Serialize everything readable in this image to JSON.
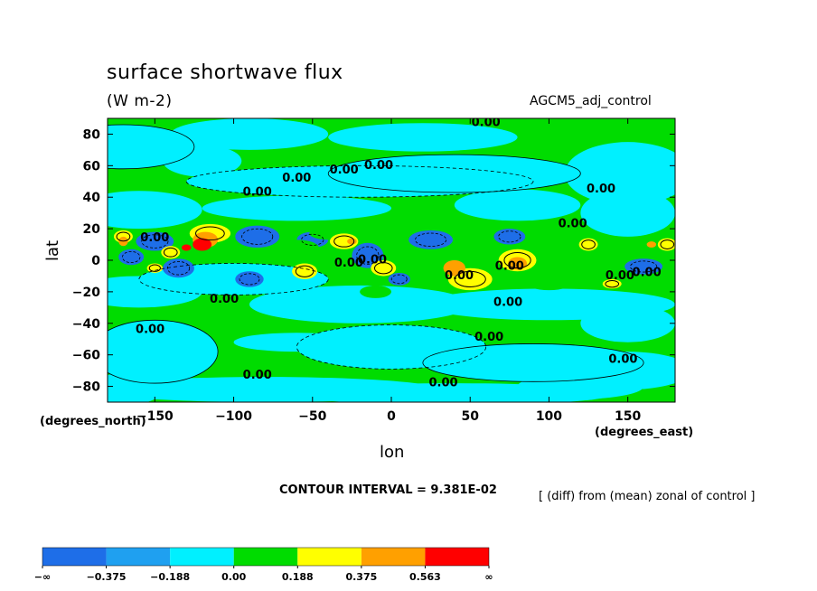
{
  "chart_data": {
    "type": "heatmap",
    "title": "surface shortwave flux",
    "subtitle": "(W m-2)",
    "dataset": "AGCM5_adj_control",
    "xlabel": "lon",
    "ylabel": "lat",
    "x_unit_label": "(degrees_east)",
    "y_unit_label": "(degrees_north)",
    "xlim": [
      -180,
      180
    ],
    "ylim": [
      -90,
      90
    ],
    "x_ticks": [
      -150,
      -100,
      -50,
      0,
      50,
      100,
      150
    ],
    "y_ticks": [
      80,
      60,
      40,
      20,
      0,
      -20,
      -40,
      -60,
      -80
    ],
    "contour_interval_text": "CONTOUR INTERVAL = 9.381E-02",
    "note": "[ (diff) from (mean) zonal of control ]",
    "colorbar": {
      "labels": [
        "-∞",
        "-0.375",
        "-0.188",
        "0.00",
        "0.188",
        "0.375",
        "0.563",
        "∞"
      ],
      "colors": [
        "#1e6ee8",
        "#1fa0f0",
        "#00f0ff",
        "#00dc00",
        "#ffff00",
        "#ffa000",
        "#ff0000"
      ]
    },
    "contour_labels": [
      {
        "lon": 60,
        "lat": 87,
        "text": "0.00"
      },
      {
        "lon": -60,
        "lat": 52,
        "text": "0.00"
      },
      {
        "lon": -30,
        "lat": 57,
        "text": "0.00"
      },
      {
        "lon": -8,
        "lat": 60,
        "text": "0.00"
      },
      {
        "lon": -85,
        "lat": 43,
        "text": "0.00"
      },
      {
        "lon": 133,
        "lat": 45,
        "text": "0.00"
      },
      {
        "lon": 115,
        "lat": 23,
        "text": "0.00"
      },
      {
        "lon": -150,
        "lat": 14,
        "text": "0.00"
      },
      {
        "lon": -27,
        "lat": -2,
        "text": "0.00"
      },
      {
        "lon": -12,
        "lat": 0,
        "text": "0.00"
      },
      {
        "lon": 43,
        "lat": -10,
        "text": "0.00"
      },
      {
        "lon": 75,
        "lat": -4,
        "text": "0.00"
      },
      {
        "lon": 145,
        "lat": -10,
        "text": "0.00"
      },
      {
        "lon": 162,
        "lat": -8,
        "text": "0.00"
      },
      {
        "lon": -106,
        "lat": -25,
        "text": "0.00"
      },
      {
        "lon": 74,
        "lat": -27,
        "text": "0.00"
      },
      {
        "lon": -153,
        "lat": -44,
        "text": "0.00"
      },
      {
        "lon": 62,
        "lat": -49,
        "text": "0.00"
      },
      {
        "lon": 147,
        "lat": -63,
        "text": "0.00"
      },
      {
        "lon": -85,
        "lat": -73,
        "text": "0.00"
      },
      {
        "lon": 33,
        "lat": -78,
        "text": "0.00"
      }
    ],
    "grid": false,
    "colorbar_position": "bottom"
  }
}
